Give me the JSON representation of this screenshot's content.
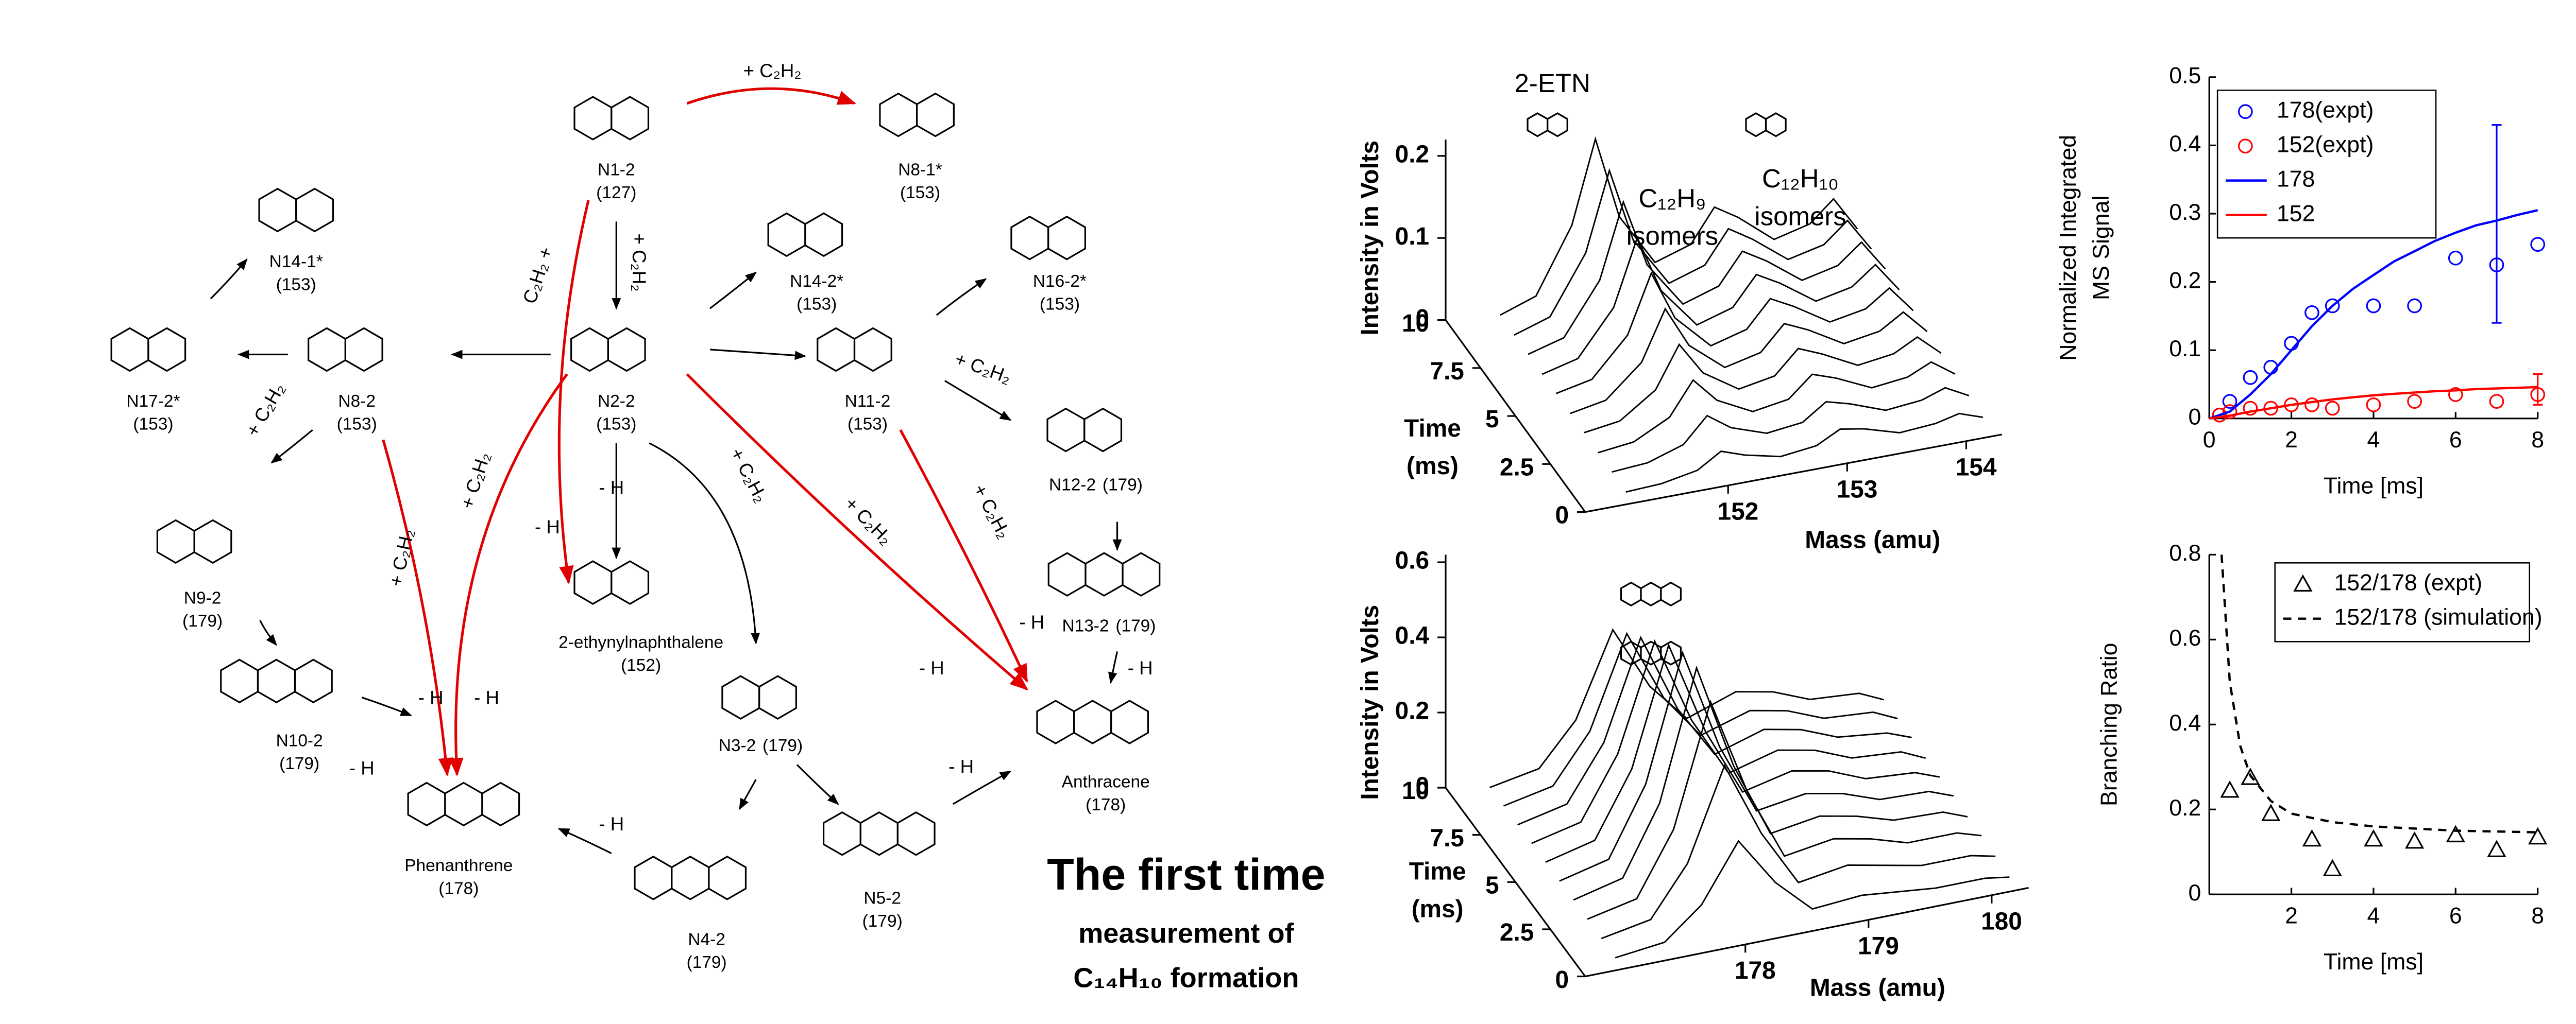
{
  "diagram": {
    "nodes": [
      {
        "label": "N1-2",
        "mass": "(127)"
      },
      {
        "label": "N8-1*",
        "mass": "(153)"
      },
      {
        "label": "N14-1*",
        "mass": "(153)"
      },
      {
        "label": "N14-2*",
        "mass": "(153)"
      },
      {
        "label": "N16-2*",
        "mass": "(153)"
      },
      {
        "label": "N17-2*",
        "mass": "(153)"
      },
      {
        "label": "N8-2",
        "mass": "(153)"
      },
      {
        "label": "N2-2",
        "mass": "(153)"
      },
      {
        "label": "N11-2",
        "mass": "(153)"
      },
      {
        "label": "N12-2",
        "mass": "(179)"
      },
      {
        "label": "N9-2",
        "mass": "(179)"
      },
      {
        "label": "N13-2",
        "mass": "(179)"
      },
      {
        "label": "2-ethynylnaphthalene",
        "mass": "(152)"
      },
      {
        "label": "N10-2",
        "mass": "(179)"
      },
      {
        "label": "N3-2",
        "mass": "(179)"
      },
      {
        "label": "Anthracene",
        "mass": "(178)"
      },
      {
        "label": "Phenanthrene",
        "mass": "(178)"
      },
      {
        "label": "N5-2",
        "mass": "(179)"
      },
      {
        "label": "N4-2",
        "mass": "(179)"
      }
    ],
    "reactions": [
      {
        "text": "+ C₂H₂",
        "color": "#e00000"
      },
      {
        "text": "+ C₂H₂",
        "color": "#000000"
      },
      {
        "text": "C₂H₂ +",
        "color": "#e00000"
      },
      {
        "text": "+ C₂H₂",
        "color": "#000000"
      },
      {
        "text": "- H",
        "color": "#e00000"
      },
      {
        "text": "- H",
        "color": "#000000"
      },
      {
        "text": "+ C₂H₂",
        "color": "#e00000"
      },
      {
        "text": "+ C₂H₂",
        "color": "#e00000"
      },
      {
        "text": "- H",
        "color": "#e00000"
      },
      {
        "text": "- H",
        "color": "#e00000"
      },
      {
        "text": "+ C₂H₂",
        "color": "#000000"
      },
      {
        "text": "+ C₂H₂",
        "color": "#e00000"
      },
      {
        "text": "+ C₂H₂",
        "color": "#000000"
      },
      {
        "text": "+ C₂H₂",
        "color": "#e00000"
      },
      {
        "text": "- H",
        "color": "#e00000"
      },
      {
        "text": "- H",
        "color": "#e00000"
      },
      {
        "text": "- H",
        "color": "#000000"
      },
      {
        "text": "- H",
        "color": "#000000"
      },
      {
        "text": "- H",
        "color": "#000000"
      },
      {
        "text": "- H",
        "color": "#000000"
      }
    ],
    "highlight": {
      "title": "The first time",
      "lines": [
        "measurement of",
        "C₁₄H₁₀ formation"
      ],
      "title_color": "#e00000"
    }
  },
  "chart_data": [
    {
      "type": "waterfall",
      "annotations": [
        "2-ETN",
        "C₁₂H₉",
        "isomers",
        "C₁₂H₁₀",
        "isomers"
      ],
      "xlabel": "Mass (amu)",
      "ylabel": "Intensity in Volts",
      "tlabel": [
        "Time",
        "(ms)"
      ],
      "xlim": [
        150.8,
        154.3
      ],
      "xticks": [
        152,
        153,
        154
      ],
      "ylim": [
        0,
        0.22
      ],
      "yticks": [
        0,
        0.1,
        0.2
      ],
      "tlim": [
        0,
        10
      ],
      "tticks": [
        0,
        2.5,
        5,
        7.5,
        10
      ],
      "color": "#000000",
      "x": [
        151.2,
        151.5,
        151.8,
        152.0,
        152.2,
        152.5,
        152.8,
        153.0,
        153.2,
        153.5,
        153.8,
        154.0,
        154.2
      ],
      "series": [
        {
          "time": 0.5,
          "values": [
            0.002,
            0.004,
            0.012,
            0.03,
            0.02,
            0.01,
            0.015,
            0.03,
            0.025,
            0.012,
            0.015,
            0.022,
            0.012
          ]
        },
        {
          "time": 1.5,
          "values": [
            0.003,
            0.006,
            0.02,
            0.05,
            0.03,
            0.015,
            0.02,
            0.04,
            0.032,
            0.016,
            0.02,
            0.03,
            0.015
          ]
        },
        {
          "time": 2.5,
          "values": [
            0.003,
            0.008,
            0.03,
            0.07,
            0.04,
            0.018,
            0.025,
            0.05,
            0.04,
            0.02,
            0.025,
            0.038,
            0.018
          ]
        },
        {
          "time": 3.5,
          "values": [
            0.004,
            0.01,
            0.04,
            0.09,
            0.05,
            0.022,
            0.03,
            0.058,
            0.046,
            0.024,
            0.03,
            0.045,
            0.02
          ]
        },
        {
          "time": 4.5,
          "values": [
            0.004,
            0.012,
            0.05,
            0.11,
            0.06,
            0.025,
            0.035,
            0.065,
            0.052,
            0.027,
            0.034,
            0.052,
            0.023
          ]
        },
        {
          "time": 5.5,
          "values": [
            0.005,
            0.014,
            0.06,
            0.13,
            0.07,
            0.028,
            0.04,
            0.072,
            0.057,
            0.03,
            0.038,
            0.058,
            0.025
          ]
        },
        {
          "time": 6.5,
          "values": [
            0.005,
            0.016,
            0.07,
            0.15,
            0.08,
            0.03,
            0.043,
            0.078,
            0.062,
            0.032,
            0.041,
            0.063,
            0.027
          ]
        },
        {
          "time": 7.5,
          "values": [
            0.006,
            0.018,
            0.08,
            0.17,
            0.088,
            0.032,
            0.046,
            0.083,
            0.066,
            0.034,
            0.044,
            0.067,
            0.029
          ]
        },
        {
          "time": 8.5,
          "values": [
            0.006,
            0.02,
            0.09,
            0.185,
            0.095,
            0.034,
            0.048,
            0.087,
            0.069,
            0.036,
            0.046,
            0.07,
            0.03
          ]
        },
        {
          "time": 9.5,
          "values": [
            0.007,
            0.022,
            0.1,
            0.2,
            0.1,
            0.036,
            0.05,
            0.09,
            0.072,
            0.037,
            0.048,
            0.073,
            0.031
          ]
        }
      ]
    },
    {
      "type": "waterfall",
      "annotations": [],
      "xlabel": "Mass (amu)",
      "ylabel": "Intensity in Volts",
      "tlabel": [
        "Time",
        "(ms)"
      ],
      "xlim": [
        176.7,
        180.3
      ],
      "xticks": [
        178,
        179,
        180
      ],
      "ylim": [
        0,
        0.62
      ],
      "yticks": [
        0,
        0.2,
        0.4,
        0.6
      ],
      "tlim": [
        0,
        10
      ],
      "tticks": [
        0,
        2.5,
        5,
        7.5,
        10
      ],
      "color": "#000000",
      "x": [
        177.0,
        177.4,
        177.7,
        178.0,
        178.3,
        178.6,
        179.0,
        179.3,
        179.6,
        180.0,
        180.2
      ],
      "series": [
        {
          "time": 0.5,
          "values": [
            0.005,
            0.02,
            0.1,
            0.25,
            0.12,
            0.03,
            0.04,
            0.03,
            0.02,
            0.02,
            0.01
          ]
        },
        {
          "time": 1.5,
          "values": [
            0.006,
            0.03,
            0.16,
            0.4,
            0.2,
            0.05,
            0.07,
            0.05,
            0.03,
            0.03,
            0.015
          ]
        },
        {
          "time": 2.5,
          "values": [
            0.007,
            0.035,
            0.2,
            0.52,
            0.26,
            0.07,
            0.09,
            0.07,
            0.04,
            0.04,
            0.02
          ]
        },
        {
          "time": 3.5,
          "values": [
            0.008,
            0.04,
            0.22,
            0.56,
            0.28,
            0.08,
            0.1,
            0.08,
            0.05,
            0.045,
            0.02
          ]
        },
        {
          "time": 4.5,
          "values": [
            0.008,
            0.04,
            0.22,
            0.55,
            0.28,
            0.09,
            0.11,
            0.09,
            0.055,
            0.05,
            0.025
          ]
        },
        {
          "time": 5.5,
          "values": [
            0.008,
            0.04,
            0.21,
            0.52,
            0.27,
            0.09,
            0.12,
            0.1,
            0.06,
            0.05,
            0.025
          ]
        },
        {
          "time": 6.5,
          "values": [
            0.008,
            0.038,
            0.2,
            0.48,
            0.25,
            0.09,
            0.125,
            0.105,
            0.065,
            0.055,
            0.025
          ]
        },
        {
          "time": 7.5,
          "values": [
            0.007,
            0.036,
            0.18,
            0.44,
            0.23,
            0.09,
            0.13,
            0.11,
            0.07,
            0.055,
            0.03
          ]
        },
        {
          "time": 8.5,
          "values": [
            0.007,
            0.034,
            0.16,
            0.4,
            0.21,
            0.09,
            0.13,
            0.11,
            0.07,
            0.06,
            0.03
          ]
        },
        {
          "time": 9.5,
          "values": [
            0.006,
            0.03,
            0.14,
            0.36,
            0.19,
            0.085,
            0.13,
            0.11,
            0.07,
            0.06,
            0.03
          ]
        }
      ]
    },
    {
      "type": "xy",
      "xlabel": "Time [ms]",
      "ylabel": [
        "Normalized Integrated",
        "MS Signal"
      ],
      "xlim": [
        0,
        8
      ],
      "xticks": [
        0,
        2,
        4,
        6,
        8
      ],
      "ylim": [
        0,
        0.5
      ],
      "yticks": [
        0,
        0.1,
        0.2,
        0.3,
        0.4,
        0.5
      ],
      "legend": "upper left",
      "series": [
        {
          "name": "178(expt)",
          "color": "#0000ff",
          "marker": "circle",
          "line": null,
          "x": [
            0.25,
            0.5,
            1,
            1.5,
            2,
            2.5,
            3,
            4,
            5,
            6,
            7,
            8
          ],
          "values": [
            0.005,
            0.025,
            0.06,
            0.075,
            0.11,
            0.155,
            0.165,
            0.165,
            0.165,
            0.235,
            0.225,
            0.255
          ]
        },
        {
          "name": "152(expt)",
          "color": "#ff0000",
          "marker": "circle",
          "line": null,
          "x": [
            0.25,
            0.5,
            1,
            1.5,
            2,
            2.5,
            3,
            4,
            5,
            6,
            7,
            8
          ],
          "values": [
            0.005,
            0.01,
            0.015,
            0.015,
            0.02,
            0.02,
            0.015,
            0.02,
            0.025,
            0.035,
            0.025,
            0.035
          ]
        },
        {
          "name": "178",
          "color": "#0000ff",
          "marker": null,
          "line": "solid",
          "x": [
            0,
            0.5,
            1,
            1.5,
            2,
            2.5,
            3,
            3.5,
            4,
            4.5,
            5,
            5.5,
            6,
            6.5,
            7,
            7.5,
            8
          ],
          "values": [
            0,
            0.01,
            0.035,
            0.065,
            0.1,
            0.135,
            0.165,
            0.19,
            0.21,
            0.23,
            0.245,
            0.26,
            0.272,
            0.283,
            0.29,
            0.298,
            0.305
          ]
        },
        {
          "name": "152",
          "color": "#ff0000",
          "marker": null,
          "line": "solid",
          "x": [
            0,
            0.5,
            1,
            1.5,
            2,
            2.5,
            3,
            3.5,
            4,
            4.5,
            5,
            5.5,
            6,
            6.5,
            7,
            7.5,
            8
          ],
          "values": [
            0,
            0.004,
            0.01,
            0.015,
            0.02,
            0.024,
            0.028,
            0.031,
            0.034,
            0.036,
            0.038,
            0.04,
            0.041,
            0.043,
            0.044,
            0.045,
            0.046
          ]
        }
      ],
      "error_bars": [
        {
          "x": 7,
          "low": 0.14,
          "high": 0.43,
          "color": "#0000ff"
        },
        {
          "x": 8,
          "low": 0.02,
          "high": 0.065,
          "color": "#ff0000"
        }
      ]
    },
    {
      "type": "xy",
      "xlabel": "Time [ms]",
      "ylabel": [
        "Branching Ratio"
      ],
      "xlim": [
        0,
        8
      ],
      "xticks": [
        2,
        4,
        6,
        8
      ],
      "ylim": [
        0,
        0.8
      ],
      "yticks": [
        0,
        0.2,
        0.4,
        0.6,
        0.8
      ],
      "legend": "upper right",
      "series": [
        {
          "name": "152/178 (expt)",
          "color": "#000000",
          "marker": "triangle",
          "line": null,
          "x": [
            0.5,
            1,
            1.5,
            2.5,
            3,
            4,
            5,
            6,
            7,
            8
          ],
          "values": [
            0.245,
            0.275,
            0.19,
            0.13,
            0.06,
            0.13,
            0.125,
            0.14,
            0.105,
            0.135
          ]
        },
        {
          "name": "152/178 (simulation)",
          "color": "#000000",
          "marker": null,
          "line": "dashed",
          "x": [
            0.3,
            0.5,
            0.75,
            1,
            1.5,
            2,
            3,
            4,
            5,
            6,
            7,
            8
          ],
          "values": [
            0.8,
            0.5,
            0.35,
            0.28,
            0.22,
            0.19,
            0.17,
            0.16,
            0.155,
            0.15,
            0.148,
            0.146
          ]
        }
      ],
      "error_bars": []
    }
  ]
}
